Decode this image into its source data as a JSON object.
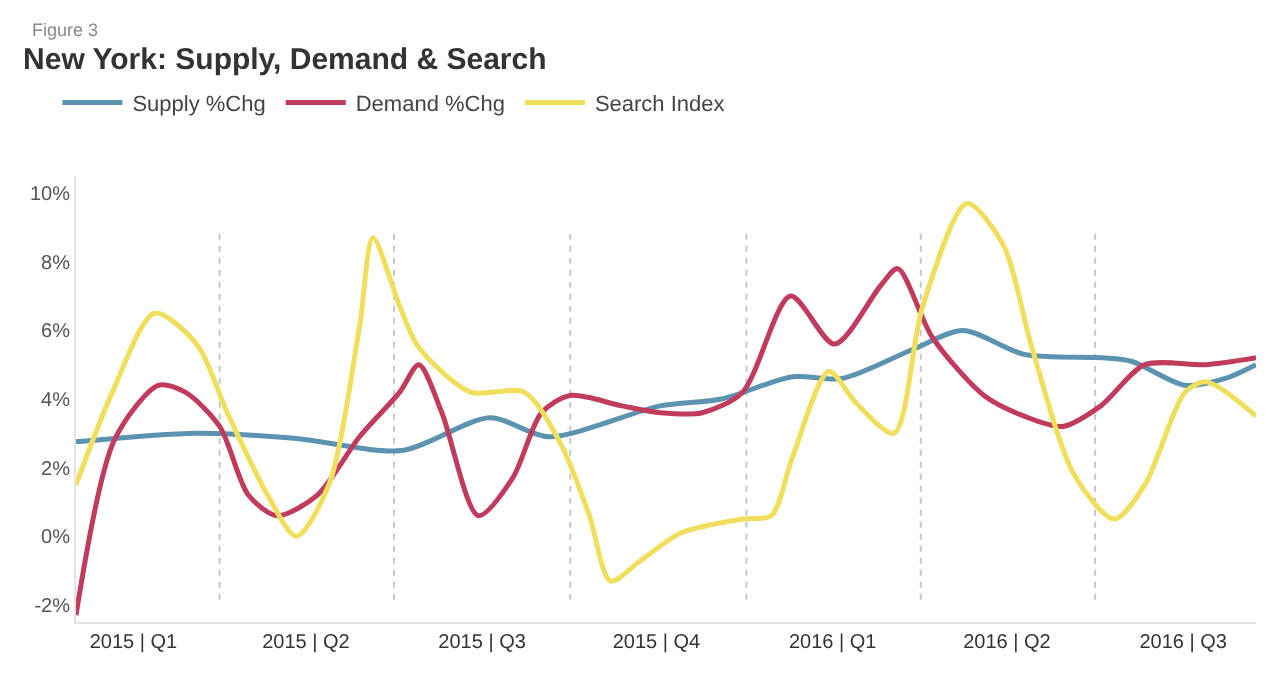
{
  "chart_data": {
    "type": "line",
    "title": "New York: Supply, Demand & Search",
    "subtitle": "Figure 3",
    "xticks": [
      {
        "value": "2015-02-15",
        "label": "2015 | Q1"
      },
      {
        "value": "2015-05-16",
        "label": "2015 | Q2"
      },
      {
        "value": "2015-08-16",
        "label": "2015 | Q3"
      },
      {
        "value": "2015-11-15",
        "label": "2015 | Q4"
      },
      {
        "value": "2016-02-15",
        "label": "2016 | Q1"
      },
      {
        "value": "2016-05-16",
        "label": "2016 | Q2"
      },
      {
        "value": "2016-08-16",
        "label": "2016 | Q3"
      }
    ],
    "yticks": [
      {
        "value": -2,
        "label": "-2%"
      },
      {
        "value": 0,
        "label": "0%"
      },
      {
        "value": 2,
        "label": "2%"
      },
      {
        "value": 4,
        "label": "4%"
      },
      {
        "value": 6,
        "label": "6%"
      },
      {
        "value": 8,
        "label": "8%"
      },
      {
        "value": 10,
        "label": "10%"
      }
    ],
    "xlim": [
      "2015-01-16",
      "2016-09-23"
    ],
    "ylim": [
      -2.5,
      10.5
    ],
    "grid": false,
    "legend": "top left",
    "line_style": "solid",
    "ref_lines": [
      {
        "axis": "x",
        "value": "2015-04-01",
        "color": "#c8c8c8",
        "line_style": "dotted"
      },
      {
        "axis": "x",
        "value": "2015-07-01",
        "color": "#c8c8c8",
        "line_style": "dotted"
      },
      {
        "axis": "x",
        "value": "2015-10-01",
        "color": "#c8c8c8",
        "line_style": "dotted"
      },
      {
        "axis": "x",
        "value": "2016-01-01",
        "color": "#c8c8c8",
        "line_style": "dotted"
      },
      {
        "axis": "x",
        "value": "2016-04-01",
        "color": "#c8c8c8",
        "line_style": "dotted"
      },
      {
        "axis": "x",
        "value": "2016-07-01",
        "color": "#c8c8c8",
        "line_style": "dotted"
      }
    ],
    "series": [
      {
        "name": "Supply %Chg",
        "color": "#5b93b0",
        "x": [
          "2015-01-16",
          "2015-03-20",
          "2015-05-11",
          "2015-07-05",
          "2015-08-20",
          "2015-09-20",
          "2015-11-17",
          "2015-12-19",
          "2016-01-25",
          "2016-02-20",
          "2016-03-28",
          "2016-04-23",
          "2016-05-25",
          "2016-07-05",
          "2016-07-20",
          "2016-08-17",
          "2016-09-07",
          "2016-09-23"
        ],
        "values": [
          2.75,
          3.0,
          2.85,
          2.5,
          3.45,
          2.9,
          3.8,
          4.0,
          4.65,
          4.6,
          5.45,
          6.0,
          5.3,
          5.2,
          5.1,
          4.4,
          4.6,
          5.0
        ]
      },
      {
        "name": "Demand %Chg",
        "color": "#c13b5c",
        "x": [
          "2015-01-16",
          "2015-02-05",
          "2015-02-28",
          "2015-03-14",
          "2015-04-01",
          "2015-04-16",
          "2015-05-01",
          "2015-05-22",
          "2015-06-13",
          "2015-07-04",
          "2015-07-14",
          "2015-07-26",
          "2015-08-14",
          "2015-09-01",
          "2015-09-16",
          "2015-10-01",
          "2015-10-28",
          "2015-11-17",
          "2015-12-09",
          "2015-12-30",
          "2016-01-24",
          "2016-02-16",
          "2016-03-11",
          "2016-03-20",
          "2016-04-07",
          "2016-05-04",
          "2016-05-25",
          "2016-06-14",
          "2016-07-04",
          "2016-07-27",
          "2016-08-28",
          "2016-09-23"
        ],
        "values": [
          -2.3,
          2.8,
          4.4,
          4.2,
          3.2,
          1.2,
          0.6,
          1.2,
          2.9,
          4.2,
          5.0,
          3.6,
          0.6,
          1.7,
          3.6,
          4.1,
          3.8,
          3.6,
          3.6,
          4.2,
          7.0,
          5.6,
          7.3,
          7.8,
          5.8,
          4.1,
          3.5,
          3.2,
          3.8,
          5.0,
          5.0,
          5.2
        ]
      },
      {
        "name": "Search Index",
        "color": "#f0df5c",
        "x": [
          "2015-01-16",
          "2015-02-04",
          "2015-02-26",
          "2015-03-20",
          "2015-04-05",
          "2015-04-26",
          "2015-05-11",
          "2015-05-28",
          "2015-06-13",
          "2015-06-20",
          "2015-07-04",
          "2015-07-14",
          "2015-08-10",
          "2015-09-07",
          "2015-09-26",
          "2015-10-11",
          "2015-10-22",
          "2015-11-07",
          "2015-11-28",
          "2015-12-30",
          "2016-01-14",
          "2016-01-25",
          "2016-02-13",
          "2016-02-27",
          "2016-03-18",
          "2016-04-02",
          "2016-04-25",
          "2016-05-14",
          "2016-05-29",
          "2016-06-20",
          "2016-07-11",
          "2016-07-27",
          "2016-08-17",
          "2016-08-28",
          "2016-09-23"
        ],
        "values": [
          1.5,
          4.2,
          6.5,
          5.6,
          3.6,
          1.2,
          0.0,
          1.5,
          6.1,
          8.7,
          6.7,
          5.5,
          4.2,
          4.2,
          2.7,
          0.6,
          -1.3,
          -0.7,
          0.1,
          0.5,
          0.6,
          2.3,
          4.8,
          3.9,
          3.0,
          6.7,
          9.7,
          8.5,
          5.5,
          1.8,
          0.5,
          1.5,
          4.2,
          4.5,
          3.5
        ]
      }
    ]
  }
}
